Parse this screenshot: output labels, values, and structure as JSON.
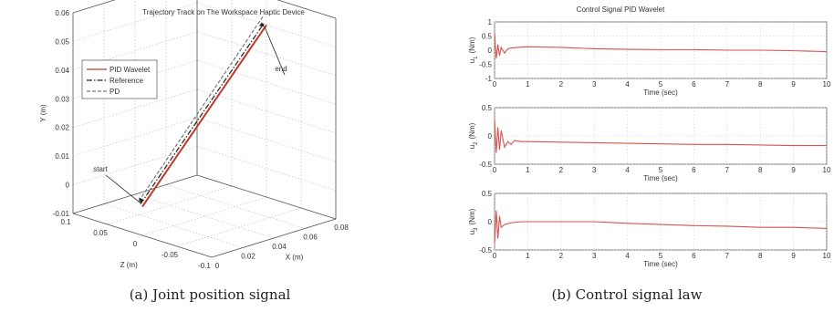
{
  "panel_a": {
    "caption": "(a)  Joint position signal",
    "chart_data": {
      "type": "line",
      "projection": "3d",
      "title": "Trajectory Track on The Workspace Haptic Device",
      "xlabel": "X (m)",
      "ylabel": "Y (m)",
      "zlabel": "Z (m)",
      "x_ticks": [
        "0",
        "0.02",
        "0.04",
        "0.06",
        "0.08"
      ],
      "y_ticks": [
        "-0.01",
        "0",
        "0.01",
        "0.02",
        "0.03",
        "0.04",
        "0.05",
        "0.06"
      ],
      "z_ticks": [
        "0.1",
        "0.05",
        "0",
        "-0.05",
        "-0.1"
      ],
      "legend_position": "top-left",
      "grid": true,
      "annotations": [
        {
          "text": "start",
          "x": 0,
          "y": 0,
          "z": 0
        },
        {
          "text": "end",
          "x": 0.08,
          "y": 0.05,
          "z": 0
        }
      ],
      "series": [
        {
          "name": "PID Wavelet",
          "color": "#c0392b",
          "style": "solid",
          "x": [
            0,
            0.08
          ],
          "y": [
            0,
            0.05
          ],
          "z": [
            0,
            0
          ]
        },
        {
          "name": "Reference",
          "color": "#222222",
          "style": "dashdot",
          "x": [
            0,
            0.08
          ],
          "y": [
            0,
            0.05
          ],
          "z": [
            0,
            0
          ]
        },
        {
          "name": "PD",
          "color": "#777777",
          "style": "dashed",
          "x": [
            0,
            0.08
          ],
          "y": [
            0,
            0.051
          ],
          "z": [
            0,
            0
          ]
        }
      ]
    }
  },
  "panel_b": {
    "caption": "(b)  Control signal law",
    "chart_data": {
      "type": "line",
      "title": "Control Signal PID Wavelet",
      "grid": true,
      "subplots": [
        {
          "ylabel": "u1 (Nm)",
          "label_main": "u",
          "label_sub": "1",
          "label_unit": "(Nm)",
          "xlabel": "Time (sec)",
          "xlim": [
            0,
            10
          ],
          "ylim": [
            -1,
            1
          ],
          "y_ticks": [
            "1",
            "0.5",
            "0",
            "-0.5",
            "-1"
          ],
          "x_ticks": [
            "0",
            "1",
            "2",
            "3",
            "4",
            "5",
            "6",
            "7",
            "8",
            "9",
            "10"
          ],
          "color": "#d9534f",
          "x": [
            0,
            0.05,
            0.1,
            0.15,
            0.2,
            0.3,
            0.4,
            0.5,
            0.7,
            1,
            2,
            3,
            4,
            5,
            6,
            7,
            8,
            9,
            10
          ],
          "y": [
            0.6,
            -0.3,
            0.2,
            -0.2,
            0.1,
            -0.1,
            0.05,
            0.08,
            0.1,
            0.12,
            0.1,
            0.05,
            0.03,
            0.02,
            0.02,
            0.0,
            0.0,
            -0.02,
            -0.05
          ]
        },
        {
          "ylabel": "u2 (Nm)",
          "label_main": "u",
          "label_sub": "2",
          "label_unit": "(Nm)",
          "xlabel": "Time (sec)",
          "xlim": [
            0,
            10
          ],
          "ylim": [
            -0.5,
            0.5
          ],
          "y_ticks": [
            "0.5",
            "0",
            "-0.5"
          ],
          "x_ticks": [
            "0",
            "1",
            "2",
            "3",
            "4",
            "5",
            "6",
            "7",
            "8",
            "9",
            "10"
          ],
          "color": "#d9534f",
          "x": [
            0,
            0.05,
            0.1,
            0.15,
            0.2,
            0.3,
            0.4,
            0.5,
            0.6,
            0.8,
            1,
            2,
            3,
            4,
            5,
            6,
            7,
            8,
            9,
            10
          ],
          "y": [
            0.3,
            -0.3,
            0.15,
            -0.25,
            0.1,
            -0.2,
            -0.1,
            -0.15,
            -0.08,
            -0.1,
            -0.1,
            -0.11,
            -0.12,
            -0.13,
            -0.14,
            -0.15,
            -0.15,
            -0.16,
            -0.17,
            -0.17
          ]
        },
        {
          "ylabel": "u3 (Nm)",
          "label_main": "u",
          "label_sub": "3",
          "label_unit": "(Nm)",
          "xlabel": "Time (sec)",
          "xlim": [
            0,
            10
          ],
          "ylim": [
            -0.5,
            0.5
          ],
          "y_ticks": [
            "0.5",
            "0",
            "-0.5"
          ],
          "x_ticks": [
            "0",
            "1",
            "2",
            "3",
            "4",
            "5",
            "6",
            "7",
            "8",
            "9",
            "10"
          ],
          "color": "#d9534f",
          "x": [
            0,
            0.05,
            0.1,
            0.15,
            0.2,
            0.3,
            0.5,
            0.8,
            1,
            2,
            3,
            4,
            5,
            6,
            7,
            8,
            9,
            10
          ],
          "y": [
            -0.4,
            0.2,
            -0.3,
            0.1,
            -0.1,
            -0.05,
            -0.02,
            0.0,
            0.0,
            0.0,
            0.0,
            -0.03,
            -0.05,
            -0.07,
            -0.08,
            -0.1,
            -0.1,
            -0.12
          ]
        }
      ]
    }
  }
}
